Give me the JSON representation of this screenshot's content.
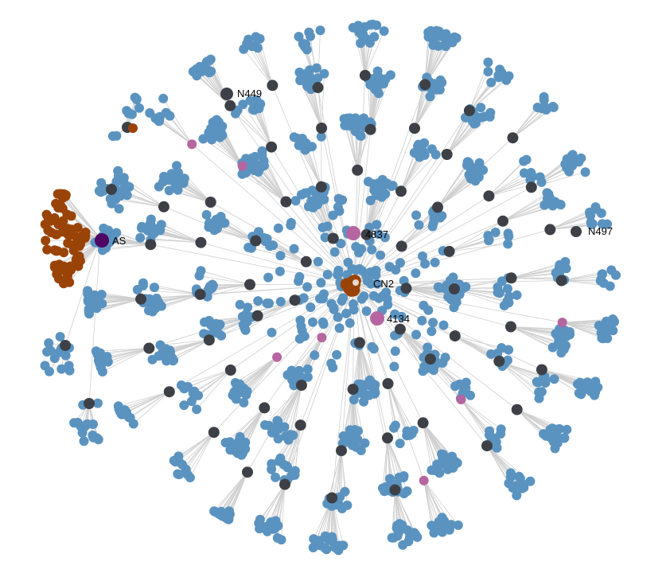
{
  "graph": {
    "type": "network",
    "layout": "radial cluster layout of hub nodes with leaf-node fans",
    "colors": {
      "background": "#ffffff",
      "edge": "#cfcfcf",
      "leaf": "#5b93c0",
      "hub": "#3d4147",
      "highlight": "#b5659f",
      "central": "#9a4307",
      "special": "#4e0563"
    },
    "labels": [
      {
        "id": "n449",
        "text": "N449"
      },
      {
        "id": "as",
        "text": "AS"
      },
      {
        "id": "n4837",
        "text": "4837"
      },
      {
        "id": "cn2",
        "text": "CN2"
      },
      {
        "id": "n4134",
        "text": "4134"
      },
      {
        "id": "n497",
        "text": "N497"
      }
    ]
  }
}
